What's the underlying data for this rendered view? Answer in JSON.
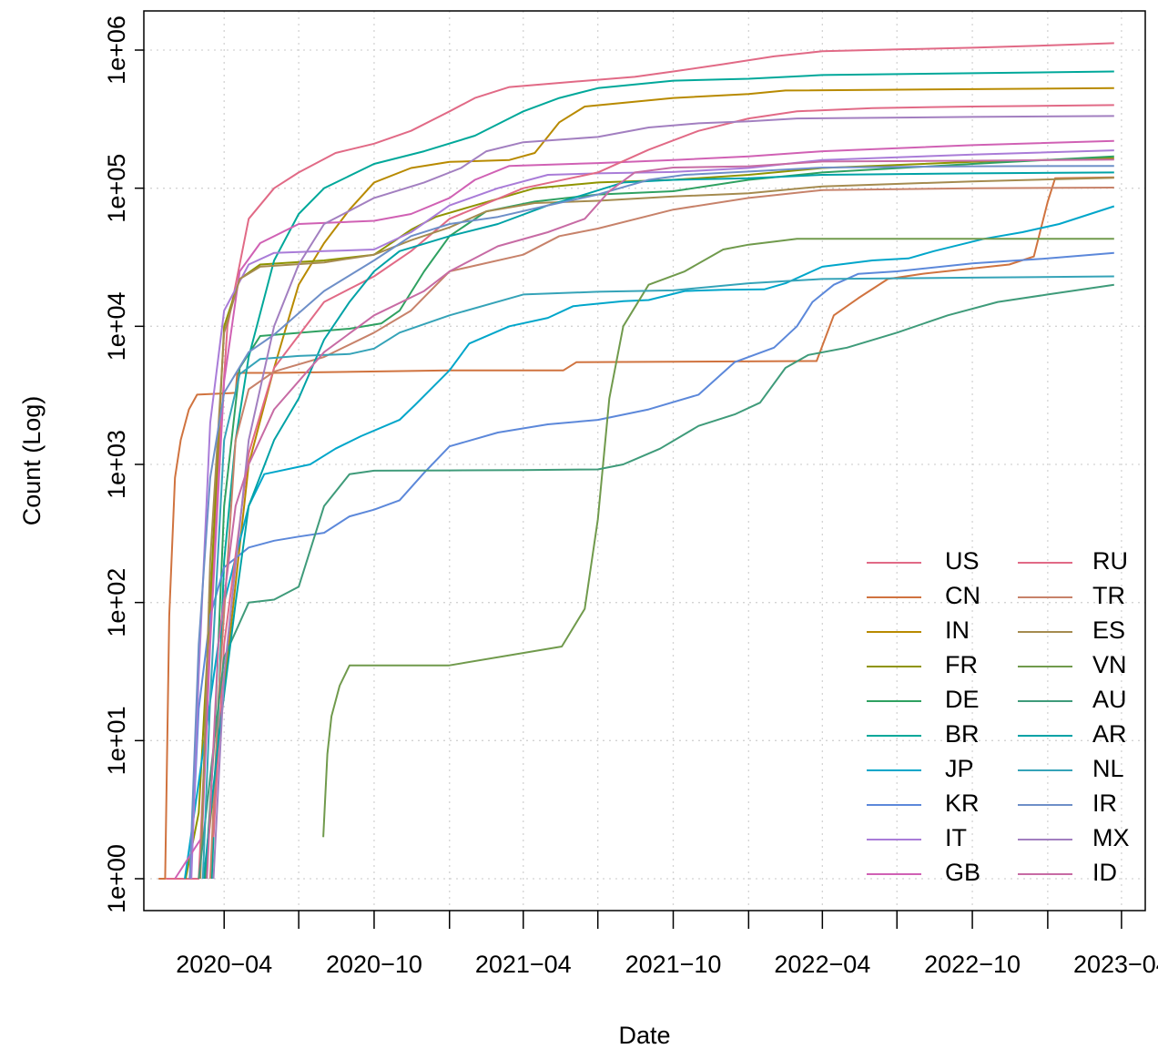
{
  "chart_data": {
    "type": "line",
    "title": "",
    "xlabel": "Date",
    "ylabel": "Count (Log)",
    "y_scale": "log10",
    "ylim": [
      1,
      1000000
    ],
    "xlim": [
      "2019-12-25",
      "2023-04-30"
    ],
    "y_ticks": [
      1,
      10,
      100,
      1000,
      10000,
      100000,
      1000000
    ],
    "y_tick_labels": [
      "1e+00",
      "1e+01",
      "1e+02",
      "1e+03",
      "1e+04",
      "1e+05",
      "1e+06"
    ],
    "x_ticks": [
      "2020-04-01",
      "2020-07-01",
      "2020-10-01",
      "2021-01-01",
      "2021-04-01",
      "2021-07-01",
      "2021-10-01",
      "2022-01-01",
      "2022-04-01",
      "2022-07-01",
      "2022-10-01",
      "2023-01-01",
      "2023-04-01"
    ],
    "x_tick_labels": [
      "2020−04",
      "",
      "2020−10",
      "",
      "2021−04",
      "",
      "2021−10",
      "",
      "2022−04",
      "",
      "2022−10",
      "",
      "2023−04"
    ],
    "grid": true,
    "legend_position": "bottom-right",
    "series": [
      {
        "name": "US",
        "color": "#E16A86",
        "x": [
          "2020-01-21",
          "2020-03-01",
          "2020-03-15",
          "2020-03-25",
          "2020-04-05",
          "2020-05-01",
          "2020-06-01",
          "2020-07-01",
          "2020-08-15",
          "2020-10-01",
          "2020-11-15",
          "2021-01-01",
          "2021-02-01",
          "2021-03-15",
          "2021-07-01",
          "2021-08-15",
          "2021-10-01",
          "2021-12-01",
          "2022-02-01",
          "2022-04-01",
          "2022-07-01",
          "2022-10-01",
          "2023-01-01",
          "2023-03-23"
        ],
        "y": [
          1,
          1,
          60,
          1000,
          10000,
          60000,
          100000,
          130000,
          180000,
          210000,
          260000,
          360000,
          450000,
          540000,
          610000,
          640000,
          700000,
          790000,
          900000,
          980000,
          1010000,
          1040000,
          1080000,
          1123000
        ]
      },
      {
        "name": "CN",
        "color": "#D0733F",
        "x": [
          "2020-01-12",
          "2020-01-20",
          "2020-01-25",
          "2020-02-01",
          "2020-02-08",
          "2020-02-18",
          "2020-02-28",
          "2020-04-15",
          "2020-04-17",
          "2020-06-01",
          "2021-01-01",
          "2021-05-20",
          "2021-06-05",
          "2022-03-25",
          "2022-04-15",
          "2022-05-15",
          "2022-06-20",
          "2022-08-01",
          "2022-11-15",
          "2022-12-15",
          "2023-01-01",
          "2023-01-10",
          "2023-03-23"
        ],
        "y": [
          1,
          1,
          80,
          800,
          1500,
          2500,
          3200,
          3300,
          4600,
          4600,
          4800,
          4800,
          5500,
          5600,
          12000,
          16000,
          22000,
          24000,
          28000,
          32000,
          80000,
          118000,
          120000
        ]
      },
      {
        "name": "IN",
        "color": "#B88A00",
        "x": [
          "2020-03-08",
          "2020-03-25",
          "2020-05-01",
          "2020-06-01",
          "2020-07-01",
          "2020-08-01",
          "2020-09-01",
          "2020-10-01",
          "2020-11-15",
          "2021-01-01",
          "2021-03-15",
          "2021-04-15",
          "2021-05-15",
          "2021-06-15",
          "2021-10-01",
          "2022-01-01",
          "2022-02-15",
          "2023-03-23"
        ],
        "y": [
          1,
          10,
          1000,
          5000,
          20000,
          40000,
          70000,
          110000,
          140000,
          155000,
          160000,
          180000,
          300000,
          390000,
          450000,
          480000,
          510000,
          530000
        ]
      },
      {
        "name": "FR",
        "color": "#8F9400",
        "x": [
          "2020-02-14",
          "2020-03-01",
          "2020-03-15",
          "2020-04-01",
          "2020-04-20",
          "2020-05-15",
          "2020-08-01",
          "2020-10-01",
          "2020-11-15",
          "2020-12-15",
          "2021-02-01",
          "2021-04-15",
          "2021-07-01",
          "2021-10-01",
          "2022-01-01",
          "2022-04-01",
          "2022-10-01",
          "2023-03-23"
        ],
        "y": [
          1,
          3,
          100,
          10000,
          22000,
          28000,
          30000,
          33000,
          50000,
          62000,
          75000,
          100000,
          110000,
          115000,
          125000,
          140000,
          155000,
          165000
        ]
      },
      {
        "name": "DE",
        "color": "#2FA161",
        "x": [
          "2020-03-09",
          "2020-03-20",
          "2020-04-01",
          "2020-04-20",
          "2020-05-15",
          "2020-09-01",
          "2020-10-10",
          "2020-11-01",
          "2020-12-01",
          "2021-01-01",
          "2021-02-15",
          "2021-04-15",
          "2021-07-01",
          "2021-10-01",
          "2022-01-01",
          "2022-04-01",
          "2022-10-01",
          "2023-03-23"
        ],
        "y": [
          1,
          10,
          500,
          5000,
          8500,
          9600,
          10500,
          13000,
          25000,
          45000,
          68000,
          80000,
          90000,
          95000,
          115000,
          130000,
          150000,
          170000
        ]
      },
      {
        "name": "BR",
        "color": "#00A89A",
        "x": [
          "2020-03-17",
          "2020-04-01",
          "2020-04-15",
          "2020-05-01",
          "2020-06-01",
          "2020-07-01",
          "2020-08-01",
          "2020-10-01",
          "2020-12-01",
          "2021-02-01",
          "2021-04-01",
          "2021-05-15",
          "2021-07-01",
          "2021-10-01",
          "2022-01-01",
          "2022-04-01",
          "2022-10-01",
          "2023-03-23"
        ],
        "y": [
          1,
          200,
          1500,
          6000,
          30000,
          65000,
          100000,
          150000,
          185000,
          240000,
          360000,
          450000,
          530000,
          600000,
          620000,
          660000,
          680000,
          700000
        ]
      },
      {
        "name": "JP",
        "color": "#00A6CA",
        "x": [
          "2020-02-13",
          "2020-03-01",
          "2020-04-01",
          "2020-05-01",
          "2020-05-20",
          "2020-07-15",
          "2020-08-15",
          "2020-09-15",
          "2020-11-01",
          "2020-11-20",
          "2021-01-01",
          "2021-01-25",
          "2021-03-15",
          "2021-05-01",
          "2021-06-01",
          "2021-08-01",
          "2021-09-01",
          "2021-10-15",
          "2021-12-01",
          "2022-01-20",
          "2022-02-15",
          "2022-04-01",
          "2022-06-01",
          "2022-07-15",
          "2022-08-15",
          "2022-10-15",
          "2022-12-01",
          "2023-01-15",
          "2023-03-23"
        ],
        "y": [
          1,
          5,
          100,
          500,
          850,
          1000,
          1300,
          1600,
          2100,
          2700,
          4800,
          7500,
          10000,
          11500,
          14000,
          15200,
          15500,
          18000,
          18400,
          18500,
          20500,
          27000,
          30000,
          31000,
          35000,
          43000,
          48000,
          55000,
          74000
        ]
      },
      {
        "name": "KR",
        "color": "#5C88DA",
        "x": [
          "2020-02-20",
          "2020-03-01",
          "2020-03-15",
          "2020-04-01",
          "2020-05-01",
          "2020-06-01",
          "2020-07-01",
          "2020-08-01",
          "2020-09-01",
          "2020-10-01",
          "2020-11-01",
          "2020-12-01",
          "2021-01-01",
          "2021-03-01",
          "2021-05-01",
          "2021-07-01",
          "2021-09-01",
          "2021-11-01",
          "2021-12-15",
          "2022-02-01",
          "2022-03-01",
          "2022-03-20",
          "2022-04-15",
          "2022-05-15",
          "2022-07-01",
          "2022-10-01",
          "2023-01-01",
          "2023-03-23"
        ],
        "y": [
          1,
          17,
          80,
          180,
          250,
          280,
          300,
          320,
          420,
          470,
          550,
          870,
          1350,
          1700,
          1950,
          2100,
          2500,
          3200,
          5500,
          7000,
          10000,
          15000,
          20000,
          24000,
          25000,
          28500,
          31000,
          34000
        ]
      },
      {
        "name": "IT",
        "color": "#A97CD8",
        "x": [
          "2020-02-21",
          "2020-03-01",
          "2020-03-15",
          "2020-04-01",
          "2020-05-01",
          "2020-06-01",
          "2020-08-01",
          "2020-10-01",
          "2020-11-15",
          "2021-01-01",
          "2021-03-01",
          "2021-05-01",
          "2021-07-01",
          "2021-10-01",
          "2022-01-01",
          "2022-04-01",
          "2022-10-01",
          "2023-03-23"
        ],
        "y": [
          1,
          30,
          2000,
          13000,
          28000,
          34000,
          35000,
          36000,
          48000,
          75000,
          100000,
          125000,
          128000,
          131000,
          140000,
          160000,
          175000,
          188000
        ]
      },
      {
        "name": "GB",
        "color": "#D061B4",
        "x": [
          "2020-02-01",
          "2020-03-05",
          "2020-03-15",
          "2020-04-01",
          "2020-04-20",
          "2020-05-15",
          "2020-07-01",
          "2020-10-01",
          "2020-11-15",
          "2021-01-01",
          "2021-02-01",
          "2021-03-15",
          "2021-07-01",
          "2021-10-01",
          "2022-01-01",
          "2022-04-01",
          "2022-10-01",
          "2023-03-23"
        ],
        "y": [
          1,
          2,
          50,
          4000,
          25000,
          40000,
          55000,
          58000,
          65000,
          85000,
          115000,
          145000,
          152000,
          160000,
          170000,
          185000,
          205000,
          220000
        ]
      },
      {
        "name": "RU",
        "color": "#E16A86",
        "x": [
          "2020-03-19",
          "2020-04-01",
          "2020-05-01",
          "2020-06-01",
          "2020-08-01",
          "2020-10-01",
          "2020-11-15",
          "2021-01-01",
          "2021-04-01",
          "2021-07-01",
          "2021-09-01",
          "2021-11-01",
          "2022-01-01",
          "2022-03-01",
          "2022-06-01",
          "2022-10-01",
          "2023-03-23"
        ],
        "y": [
          2,
          50,
          1200,
          5000,
          15000,
          23000,
          35000,
          60000,
          100000,
          130000,
          190000,
          260000,
          320000,
          360000,
          380000,
          390000,
          400000
        ]
      },
      {
        "name": "TR",
        "color": "#C7826A",
        "x": [
          "2020-03-15",
          "2020-03-25",
          "2020-04-15",
          "2020-05-01",
          "2020-06-01",
          "2020-08-01",
          "2020-10-01",
          "2020-11-15",
          "2021-01-01",
          "2021-04-01",
          "2021-05-15",
          "2021-07-01",
          "2021-10-01",
          "2022-01-01",
          "2022-04-01",
          "2022-10-01",
          "2023-03-23"
        ],
        "y": [
          1,
          20,
          1500,
          3500,
          4700,
          6000,
          9000,
          13000,
          25000,
          33000,
          45000,
          51000,
          70000,
          85000,
          97000,
          100000,
          101000
        ]
      },
      {
        "name": "ES",
        "color": "#A58B4F",
        "x": [
          "2020-03-03",
          "2020-03-15",
          "2020-04-01",
          "2020-04-20",
          "2020-05-15",
          "2020-08-01",
          "2020-10-01",
          "2020-11-15",
          "2021-01-01",
          "2021-02-15",
          "2021-04-15",
          "2021-07-01",
          "2021-10-01",
          "2022-01-01",
          "2022-04-01",
          "2022-10-01",
          "2023-03-23"
        ],
        "y": [
          1,
          200,
          9000,
          22000,
          27000,
          29000,
          33000,
          42000,
          52000,
          68000,
          78000,
          81000,
          87000,
          92000,
          103000,
          112000,
          119000
        ]
      },
      {
        "name": "VN",
        "color": "#709A4C",
        "x": [
          "2020-07-31",
          "2020-08-05",
          "2020-08-10",
          "2020-08-20",
          "2020-09-01",
          "2020-12-31",
          "2021-05-18",
          "2021-06-15",
          "2021-07-01",
          "2021-07-15",
          "2021-08-01",
          "2021-09-01",
          "2021-10-15",
          "2021-12-01",
          "2022-01-01",
          "2022-02-01",
          "2022-03-01",
          "2022-05-01",
          "2022-10-01",
          "2023-03-23"
        ],
        "y": [
          2,
          8,
          15,
          25,
          35,
          35,
          48,
          90,
          400,
          3000,
          10000,
          20000,
          25000,
          36000,
          39000,
          41000,
          43000,
          43000,
          43000,
          43000
        ]
      },
      {
        "name": "AU",
        "color": "#3F9B7A",
        "x": [
          "2020-03-01",
          "2020-03-20",
          "2020-04-01",
          "2020-05-01",
          "2020-06-01",
          "2020-07-01",
          "2020-08-01",
          "2020-09-01",
          "2020-10-01",
          "2021-01-01",
          "2021-04-01",
          "2021-07-01",
          "2021-08-01",
          "2021-09-15",
          "2021-11-01",
          "2021-12-15",
          "2022-01-15",
          "2022-02-15",
          "2022-03-15",
          "2022-05-01",
          "2022-07-01",
          "2022-09-01",
          "2022-11-01",
          "2023-01-01",
          "2023-03-23"
        ],
        "y": [
          1,
          10,
          40,
          100,
          105,
          130,
          500,
          850,
          900,
          905,
          910,
          920,
          1000,
          1300,
          1900,
          2300,
          2800,
          5000,
          6200,
          7000,
          9000,
          12000,
          15000,
          17000,
          20000
        ]
      },
      {
        "name": "AR",
        "color": "#00A2A6",
        "x": [
          "2020-03-07",
          "2020-03-25",
          "2020-04-15",
          "2020-05-01",
          "2020-06-01",
          "2020-07-01",
          "2020-08-01",
          "2020-09-01",
          "2020-10-01",
          "2020-11-01",
          "2021-01-01",
          "2021-03-01",
          "2021-05-01",
          "2021-06-15",
          "2021-08-01",
          "2021-10-01",
          "2022-01-01",
          "2022-04-01",
          "2022-10-01",
          "2023-03-23"
        ],
        "y": [
          1,
          10,
          100,
          500,
          1500,
          3000,
          8000,
          15000,
          25000,
          35000,
          45000,
          55000,
          75000,
          90000,
          110000,
          115000,
          118000,
          125000,
          128000,
          130000
        ]
      },
      {
        "name": "NL",
        "color": "#35A3B8",
        "x": [
          "2020-03-06",
          "2020-03-15",
          "2020-04-01",
          "2020-04-20",
          "2020-05-15",
          "2020-07-01",
          "2020-09-01",
          "2020-10-01",
          "2020-11-01",
          "2021-01-01",
          "2021-04-01",
          "2021-07-01",
          "2021-10-01",
          "2022-01-01",
          "2022-04-01",
          "2022-10-01",
          "2023-03-23"
        ],
        "y": [
          1,
          20,
          1500,
          4500,
          5800,
          6100,
          6300,
          6900,
          9000,
          12000,
          17000,
          17800,
          18200,
          20500,
          22000,
          22500,
          23000
        ]
      },
      {
        "name": "IR",
        "color": "#6E8FC8",
        "x": [
          "2020-02-19",
          "2020-03-01",
          "2020-03-15",
          "2020-04-01",
          "2020-05-01",
          "2020-06-01",
          "2020-08-01",
          "2020-10-01",
          "2020-11-15",
          "2021-01-01",
          "2021-03-01",
          "2021-05-01",
          "2021-07-01",
          "2021-09-01",
          "2021-10-15",
          "2022-01-01",
          "2022-04-01",
          "2022-10-01",
          "2023-03-23"
        ],
        "y": [
          1,
          50,
          800,
          3300,
          6500,
          8700,
          18000,
          30000,
          45000,
          55000,
          62000,
          75000,
          90000,
          115000,
          125000,
          132000,
          141000,
          144000,
          145000
        ]
      },
      {
        "name": "MX",
        "color": "#A27FC0",
        "x": [
          "2020-03-19",
          "2020-04-01",
          "2020-05-01",
          "2020-06-01",
          "2020-07-01",
          "2020-08-01",
          "2020-10-01",
          "2020-12-01",
          "2021-01-15",
          "2021-02-15",
          "2021-04-01",
          "2021-07-01",
          "2021-09-01",
          "2021-11-01",
          "2022-01-01",
          "2022-03-01",
          "2022-10-01",
          "2023-03-23"
        ],
        "y": [
          1,
          30,
          1500,
          10000,
          28000,
          55000,
          85000,
          110000,
          140000,
          185000,
          215000,
          235000,
          275000,
          295000,
          305000,
          320000,
          328000,
          333000
        ]
      },
      {
        "name": "ID",
        "color": "#C76BA4",
        "x": [
          "2020-03-11",
          "2020-03-25",
          "2020-04-15",
          "2020-05-01",
          "2020-06-01",
          "2020-08-01",
          "2020-10-01",
          "2020-12-01",
          "2021-01-01",
          "2021-03-01",
          "2021-05-01",
          "2021-06-15",
          "2021-07-15",
          "2021-08-15",
          "2021-10-01",
          "2022-01-01",
          "2022-04-01",
          "2022-10-01",
          "2023-03-23"
        ],
        "y": [
          1,
          50,
          500,
          1000,
          2500,
          6500,
          12000,
          18000,
          25000,
          38000,
          48000,
          60000,
          95000,
          130000,
          141000,
          144000,
          156000,
          158000,
          161000
        ]
      }
    ]
  }
}
